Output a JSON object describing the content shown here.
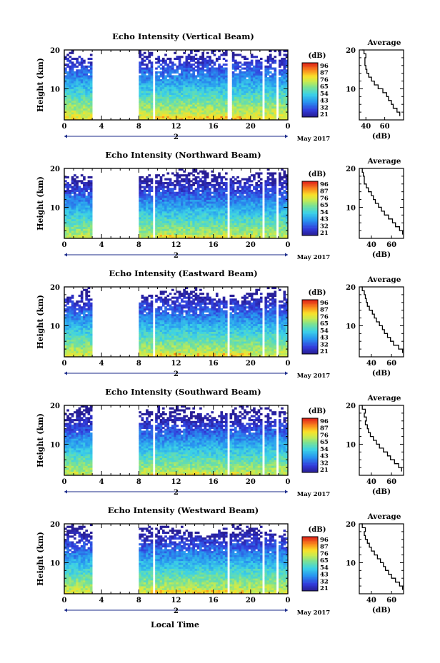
{
  "figure": {
    "date_label": "May 2017",
    "day_label": "2",
    "xlabel": "Local Time",
    "colorbar_unit": "(dB)",
    "colorbar_ticks": [
      "96",
      "87",
      "76",
      "65",
      "54",
      "43",
      "32",
      "21"
    ],
    "profile_title": "Average",
    "profile_xlabel": "(dB)"
  },
  "chart_data": [
    {
      "type": "heatmap",
      "title": "Echo Intensity (Vertical Beam)",
      "xlabel": "Local Time",
      "ylabel": "Height (km)",
      "xlim": [
        0,
        24
      ],
      "ylim": [
        2,
        20
      ],
      "xticks": [
        "0",
        "4",
        "8",
        "12",
        "16",
        "20",
        "0"
      ],
      "yticks": [
        "10",
        "20"
      ],
      "colorbar": {
        "unit": "dB",
        "range": [
          21,
          96
        ]
      },
      "gaps": [
        [
          3,
          8
        ],
        [
          9.4,
          9.7
        ],
        [
          17.6,
          18.0
        ],
        [
          21.2,
          21.5
        ],
        [
          22.8,
          23.1
        ]
      ],
      "top_km": 19.5,
      "surface_db": 75,
      "average_profile": {
        "title": "Average",
        "xlabel": "(dB)",
        "xticks": [
          "40",
          "60"
        ],
        "xlim": [
          33,
          80
        ],
        "height_km": [
          3,
          4,
          5,
          6,
          7,
          8,
          9,
          10,
          11,
          12,
          13,
          14,
          15,
          16,
          17,
          18,
          19,
          20
        ],
        "db": [
          76,
          73,
          69,
          67,
          64,
          62,
          58,
          53,
          49,
          46,
          43,
          41,
          40,
          39,
          39,
          40,
          38,
          36
        ]
      }
    },
    {
      "type": "heatmap",
      "title": "Echo Intensity (Northward Beam)",
      "xlabel": "Local Time",
      "ylabel": "Height (km)",
      "xlim": [
        0,
        24
      ],
      "ylim": [
        2,
        20
      ],
      "xticks": [
        "0",
        "4",
        "8",
        "12",
        "16",
        "20",
        "0"
      ],
      "yticks": [
        "10",
        "20"
      ],
      "colorbar": {
        "unit": "dB",
        "range": [
          21,
          96
        ]
      },
      "gaps": [
        [
          3,
          8
        ],
        [
          9.4,
          9.7
        ],
        [
          17.6,
          17.8
        ],
        [
          21.3,
          21.5
        ],
        [
          22.8,
          23.0
        ]
      ],
      "top_km": 19.0,
      "surface_db": 70,
      "average_profile": {
        "title": "Average",
        "xlabel": "(dB)",
        "xticks": [
          "40",
          "60"
        ],
        "xlim": [
          28,
          72
        ],
        "height_km": [
          3,
          4,
          5,
          6,
          7,
          8,
          9,
          10,
          11,
          12,
          13,
          14,
          15,
          16,
          17,
          18,
          19,
          20
        ],
        "db": [
          71,
          68,
          64,
          61,
          57,
          53,
          50,
          47,
          44,
          42,
          40,
          37,
          35,
          33,
          33,
          32,
          31,
          30
        ]
      }
    },
    {
      "type": "heatmap",
      "title": "Echo Intensity (Eastward Beam)",
      "xlabel": "Local Time",
      "ylabel": "Height (km)",
      "xlim": [
        0,
        24
      ],
      "ylim": [
        2,
        20
      ],
      "xticks": [
        "0",
        "4",
        "8",
        "12",
        "16",
        "20",
        "0"
      ],
      "yticks": [
        "10",
        "20"
      ],
      "colorbar": {
        "unit": "dB",
        "range": [
          21,
          96
        ]
      },
      "gaps": [
        [
          3,
          8
        ],
        [
          9.4,
          9.7
        ],
        [
          17.6,
          17.8
        ],
        [
          21.3,
          21.5
        ],
        [
          22.8,
          23.0
        ]
      ],
      "top_km": 18.5,
      "surface_db": 72,
      "average_profile": {
        "title": "Average",
        "xlabel": "(dB)",
        "xticks": [
          "40",
          "60"
        ],
        "xlim": [
          28,
          72
        ],
        "height_km": [
          3,
          4,
          5,
          6,
          7,
          8,
          9,
          10,
          11,
          12,
          13,
          14,
          15,
          16,
          17,
          18,
          19,
          20
        ],
        "db": [
          71,
          67,
          62,
          59,
          56,
          53,
          51,
          48,
          45,
          43,
          41,
          38,
          36,
          35,
          34,
          33,
          31,
          30
        ]
      }
    },
    {
      "type": "heatmap",
      "title": "Echo Intensity (Southward Beam)",
      "xlabel": "Local Time",
      "ylabel": "Height (km)",
      "xlim": [
        0,
        24
      ],
      "ylim": [
        2,
        20
      ],
      "xticks": [
        "0",
        "4",
        "8",
        "12",
        "16",
        "20",
        "0"
      ],
      "yticks": [
        "10",
        "20"
      ],
      "colorbar": {
        "unit": "dB",
        "range": [
          21,
          96
        ]
      },
      "gaps": [
        [
          3,
          8
        ],
        [
          9.4,
          9.7
        ],
        [
          17.6,
          17.8
        ],
        [
          21.3,
          21.5
        ],
        [
          22.8,
          23.0
        ]
      ],
      "top_km": 19.0,
      "surface_db": 70,
      "average_profile": {
        "title": "Average",
        "xlabel": "(dB)",
        "xticks": [
          "40",
          "60"
        ],
        "xlim": [
          28,
          72
        ],
        "height_km": [
          3,
          4,
          5,
          6,
          7,
          8,
          9,
          10,
          11,
          12,
          13,
          14,
          15,
          16,
          17,
          18,
          19,
          20
        ],
        "db": [
          70,
          67,
          63,
          59,
          56,
          52,
          48,
          45,
          42,
          39,
          37,
          36,
          34,
          35,
          33,
          34,
          31,
          30
        ]
      }
    },
    {
      "type": "heatmap",
      "title": "Echo Intensity (Westward Beam)",
      "xlabel": "Local Time",
      "ylabel": "Height (km)",
      "xlim": [
        0,
        24
      ],
      "ylim": [
        2,
        20
      ],
      "xticks": [
        "0",
        "4",
        "8",
        "12",
        "16",
        "20",
        "0"
      ],
      "yticks": [
        "10",
        "20"
      ],
      "colorbar": {
        "unit": "dB",
        "range": [
          21,
          96
        ]
      },
      "gaps": [
        [
          3,
          8
        ],
        [
          9.4,
          9.7
        ],
        [
          17.6,
          17.8
        ],
        [
          21.3,
          21.5
        ],
        [
          22.8,
          23.0
        ]
      ],
      "top_km": 18.5,
      "surface_db": 72,
      "average_profile": {
        "title": "Average",
        "xlabel": "(dB)",
        "xticks": [
          "40",
          "60"
        ],
        "xlim": [
          28,
          72
        ],
        "height_km": [
          3,
          4,
          5,
          6,
          7,
          8,
          9,
          10,
          11,
          12,
          13,
          14,
          15,
          16,
          17,
          18,
          19,
          20
        ],
        "db": [
          71,
          68,
          64,
          60,
          57,
          54,
          52,
          49,
          46,
          43,
          40,
          38,
          36,
          34,
          33,
          34,
          31,
          30
        ]
      }
    }
  ]
}
